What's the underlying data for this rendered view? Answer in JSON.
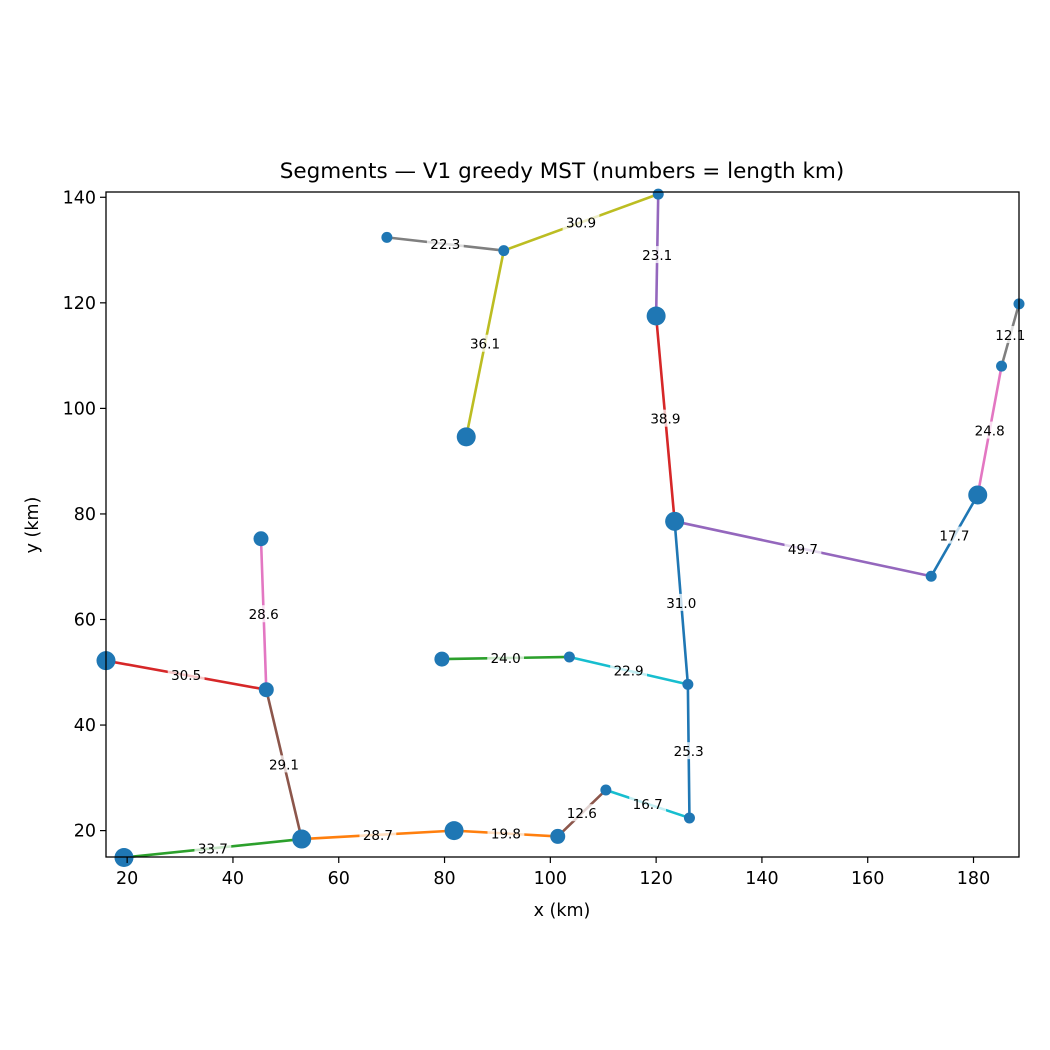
{
  "chart_data": {
    "type": "line",
    "title": "Segments — V1 greedy MST (numbers = length km)",
    "xlabel": "x (km)",
    "ylabel": "y (km)",
    "xlim": [
      16,
      188.6
    ],
    "ylim": [
      15,
      141
    ],
    "xticks": [
      20,
      40,
      60,
      80,
      100,
      120,
      140,
      160,
      180
    ],
    "yticks": [
      20,
      40,
      60,
      80,
      100,
      120,
      140
    ],
    "grid": false,
    "legend": "none",
    "nodes": [
      {
        "x": 16.0,
        "y": 52.2,
        "size": "large"
      },
      {
        "x": 19.4,
        "y": 14.9,
        "size": "large"
      },
      {
        "x": 45.3,
        "y": 75.3,
        "size": "medium"
      },
      {
        "x": 46.3,
        "y": 46.7,
        "size": "medium"
      },
      {
        "x": 53.0,
        "y": 18.4,
        "size": "large"
      },
      {
        "x": 69.1,
        "y": 132.4,
        "size": "small"
      },
      {
        "x": 79.5,
        "y": 52.5,
        "size": "medium"
      },
      {
        "x": 81.8,
        "y": 20.0,
        "size": "large"
      },
      {
        "x": 84.1,
        "y": 94.6,
        "size": "large"
      },
      {
        "x": 91.2,
        "y": 129.9,
        "size": "small"
      },
      {
        "x": 101.4,
        "y": 18.9,
        "size": "medium"
      },
      {
        "x": 103.6,
        "y": 52.9,
        "size": "small"
      },
      {
        "x": 110.5,
        "y": 27.7,
        "size": "small"
      },
      {
        "x": 120.0,
        "y": 117.5,
        "size": "large"
      },
      {
        "x": 120.4,
        "y": 140.6,
        "size": "small"
      },
      {
        "x": 123.5,
        "y": 78.6,
        "size": "large"
      },
      {
        "x": 126.0,
        "y": 47.7,
        "size": "small"
      },
      {
        "x": 126.3,
        "y": 22.4,
        "size": "small"
      },
      {
        "x": 172.0,
        "y": 68.2,
        "size": "small"
      },
      {
        "x": 180.8,
        "y": 83.6,
        "size": "large"
      },
      {
        "x": 185.3,
        "y": 108.0,
        "size": "small"
      },
      {
        "x": 188.6,
        "y": 119.8,
        "size": "small"
      }
    ],
    "segments": [
      {
        "x1": 69.1,
        "y1": 132.4,
        "x2": 91.2,
        "y2": 129.9,
        "length": "22.3",
        "color": "#7f7f7f"
      },
      {
        "x1": 91.2,
        "y1": 129.9,
        "x2": 120.4,
        "y2": 140.6,
        "length": "30.9",
        "color": "#bcbd22"
      },
      {
        "x1": 91.2,
        "y1": 129.9,
        "x2": 84.1,
        "y2": 94.6,
        "length": "36.1",
        "color": "#bcbd22"
      },
      {
        "x1": 120.4,
        "y1": 140.6,
        "x2": 120.0,
        "y2": 117.5,
        "length": "23.1",
        "color": "#9467bd"
      },
      {
        "x1": 120.0,
        "y1": 117.5,
        "x2": 123.5,
        "y2": 78.6,
        "length": "38.9",
        "color": "#d62728"
      },
      {
        "x1": 123.5,
        "y1": 78.6,
        "x2": 172.0,
        "y2": 68.2,
        "length": "49.7",
        "color": "#9467bd"
      },
      {
        "x1": 123.5,
        "y1": 78.6,
        "x2": 126.0,
        "y2": 47.7,
        "length": "31.0",
        "color": "#1f77b4"
      },
      {
        "x1": 172.0,
        "y1": 68.2,
        "x2": 180.8,
        "y2": 83.6,
        "length": "17.7",
        "color": "#1f77b4"
      },
      {
        "x1": 180.8,
        "y1": 83.6,
        "x2": 185.3,
        "y2": 108.0,
        "length": "24.8",
        "color": "#e377c2"
      },
      {
        "x1": 185.3,
        "y1": 108.0,
        "x2": 188.6,
        "y2": 119.8,
        "length": "12.1",
        "color": "#7f7f7f"
      },
      {
        "x1": 79.5,
        "y1": 52.5,
        "x2": 103.6,
        "y2": 52.9,
        "length": "24.0",
        "color": "#2ca02c"
      },
      {
        "x1": 103.6,
        "y1": 52.9,
        "x2": 126.0,
        "y2": 47.7,
        "length": "22.9",
        "color": "#17becf"
      },
      {
        "x1": 126.0,
        "y1": 47.7,
        "x2": 126.3,
        "y2": 22.4,
        "length": "25.3",
        "color": "#1f77b4"
      },
      {
        "x1": 126.3,
        "y1": 22.4,
        "x2": 110.5,
        "y2": 27.7,
        "length": "16.7",
        "color": "#17becf"
      },
      {
        "x1": 110.5,
        "y1": 27.7,
        "x2": 101.4,
        "y2": 18.9,
        "length": "12.6",
        "color": "#8c564b"
      },
      {
        "x1": 101.4,
        "y1": 18.9,
        "x2": 81.8,
        "y2": 20.0,
        "length": "19.8",
        "color": "#ff7f0e"
      },
      {
        "x1": 81.8,
        "y1": 20.0,
        "x2": 53.0,
        "y2": 18.4,
        "length": "28.7",
        "color": "#ff7f0e"
      },
      {
        "x1": 53.0,
        "y1": 18.4,
        "x2": 19.4,
        "y2": 14.9,
        "length": "33.7",
        "color": "#2ca02c"
      },
      {
        "x1": 53.0,
        "y1": 18.4,
        "x2": 46.3,
        "y2": 46.7,
        "length": "29.1",
        "color": "#8c564b"
      },
      {
        "x1": 46.3,
        "y1": 46.7,
        "x2": 16.0,
        "y2": 52.2,
        "length": "30.5",
        "color": "#d62728"
      },
      {
        "x1": 46.3,
        "y1": 46.7,
        "x2": 45.3,
        "y2": 75.3,
        "length": "28.6",
        "color": "#e377c2"
      }
    ],
    "node_color": "#1f77b4"
  }
}
